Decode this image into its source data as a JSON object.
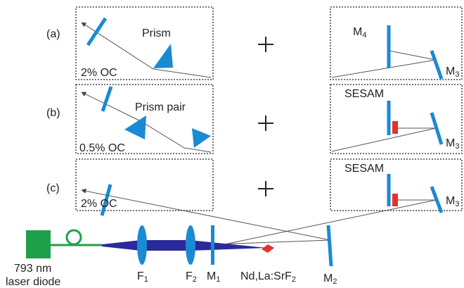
{
  "panels": [
    {
      "label": "(a)",
      "left": {
        "element": "Prism",
        "coupler": "2% OC"
      },
      "right": {
        "mirror": {
          "text": "M",
          "sub": "4"
        },
        "end": {
          "text": "M",
          "sub": "3"
        }
      }
    },
    {
      "label": "(b)",
      "left": {
        "element": "Prism pair",
        "coupler": "0.5% OC"
      },
      "right": {
        "mirror": "SESAM",
        "end": {
          "text": "M",
          "sub": "3"
        }
      }
    },
    {
      "label": "(c)",
      "left": {
        "coupler": "2% OC"
      },
      "right": {
        "mirror": "SESAM",
        "end": {
          "text": "M",
          "sub": "3"
        }
      }
    }
  ],
  "pump": {
    "line1": "793 nm",
    "line2": "laser diode"
  },
  "components": {
    "f1": {
      "text": "F",
      "sub": "1"
    },
    "f2": {
      "text": "F",
      "sub": "2"
    },
    "m1": {
      "text": "M",
      "sub": "1"
    },
    "crystal": {
      "text": "Nd,La:SrF",
      "sub": "2"
    },
    "m2": {
      "text": "M",
      "sub": "2"
    }
  }
}
